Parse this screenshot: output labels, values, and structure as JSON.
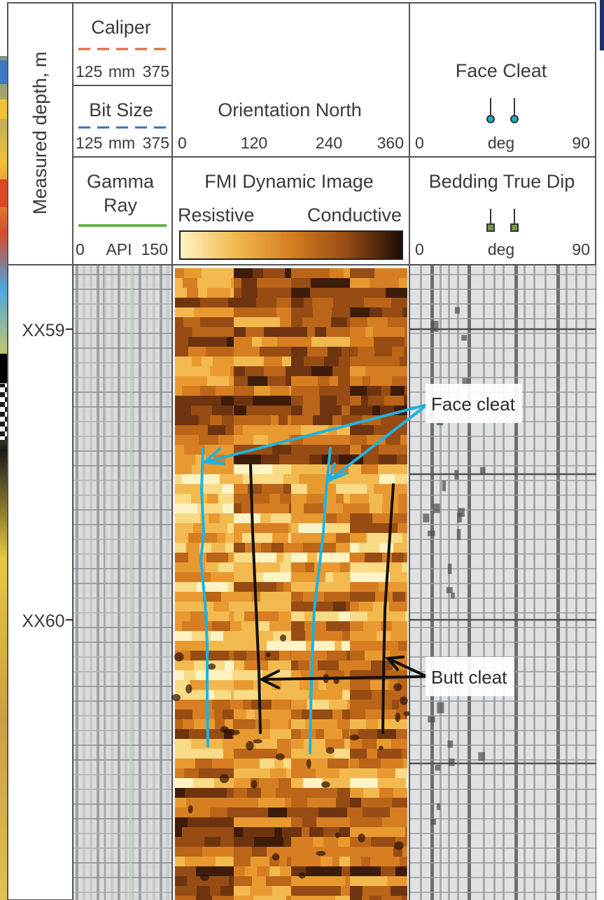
{
  "chart_data": {
    "type": "well-log",
    "depth_axis": {
      "label": "Measured depth, m",
      "ticks": [
        "XX59",
        "XX60"
      ]
    },
    "tracks": {
      "curves": {
        "caliper": {
          "name": "Caliper",
          "unit": "mm",
          "min": "125",
          "max": "375",
          "color": "#e8603a"
        },
        "bit_size": {
          "name": "Bit Size",
          "unit": "mm",
          "min": "125",
          "max": "375",
          "color": "#3d6fb0"
        },
        "gamma_ray": {
          "name": "Gamma Ray",
          "name_l1": "Gamma",
          "name_l2": "Ray",
          "unit": "API",
          "min": "0",
          "max": "150",
          "color": "#6ab04c"
        }
      },
      "image": {
        "orientation_title": "Orientation North",
        "orientation_ticks": [
          "0",
          "120",
          "240",
          "360"
        ],
        "image_title": "FMI Dynamic Image",
        "scale_left": "Resistive",
        "scale_right": "Conductive",
        "scale_colors": [
          "#fff3c4",
          "#f9da85",
          "#f2b94f",
          "#e89a30",
          "#d77e22",
          "#bb6518",
          "#974c14",
          "#6e3410",
          "#3e1c0a",
          "#1a0c05"
        ]
      },
      "dips": {
        "face_cleat": {
          "title": "Face Cleat",
          "unit": "deg",
          "min": "0",
          "max": "90",
          "marker_color": "#2aa8c8"
        },
        "bedding": {
          "title": "Bedding True Dip",
          "unit": "deg",
          "min": "0",
          "max": "90",
          "marker_color": "#6e9a4a"
        }
      }
    },
    "annotations": [
      {
        "label": "Face cleat",
        "color": "#1fb2e0"
      },
      {
        "label": "Butt cleat",
        "color": "#111111"
      }
    ]
  }
}
